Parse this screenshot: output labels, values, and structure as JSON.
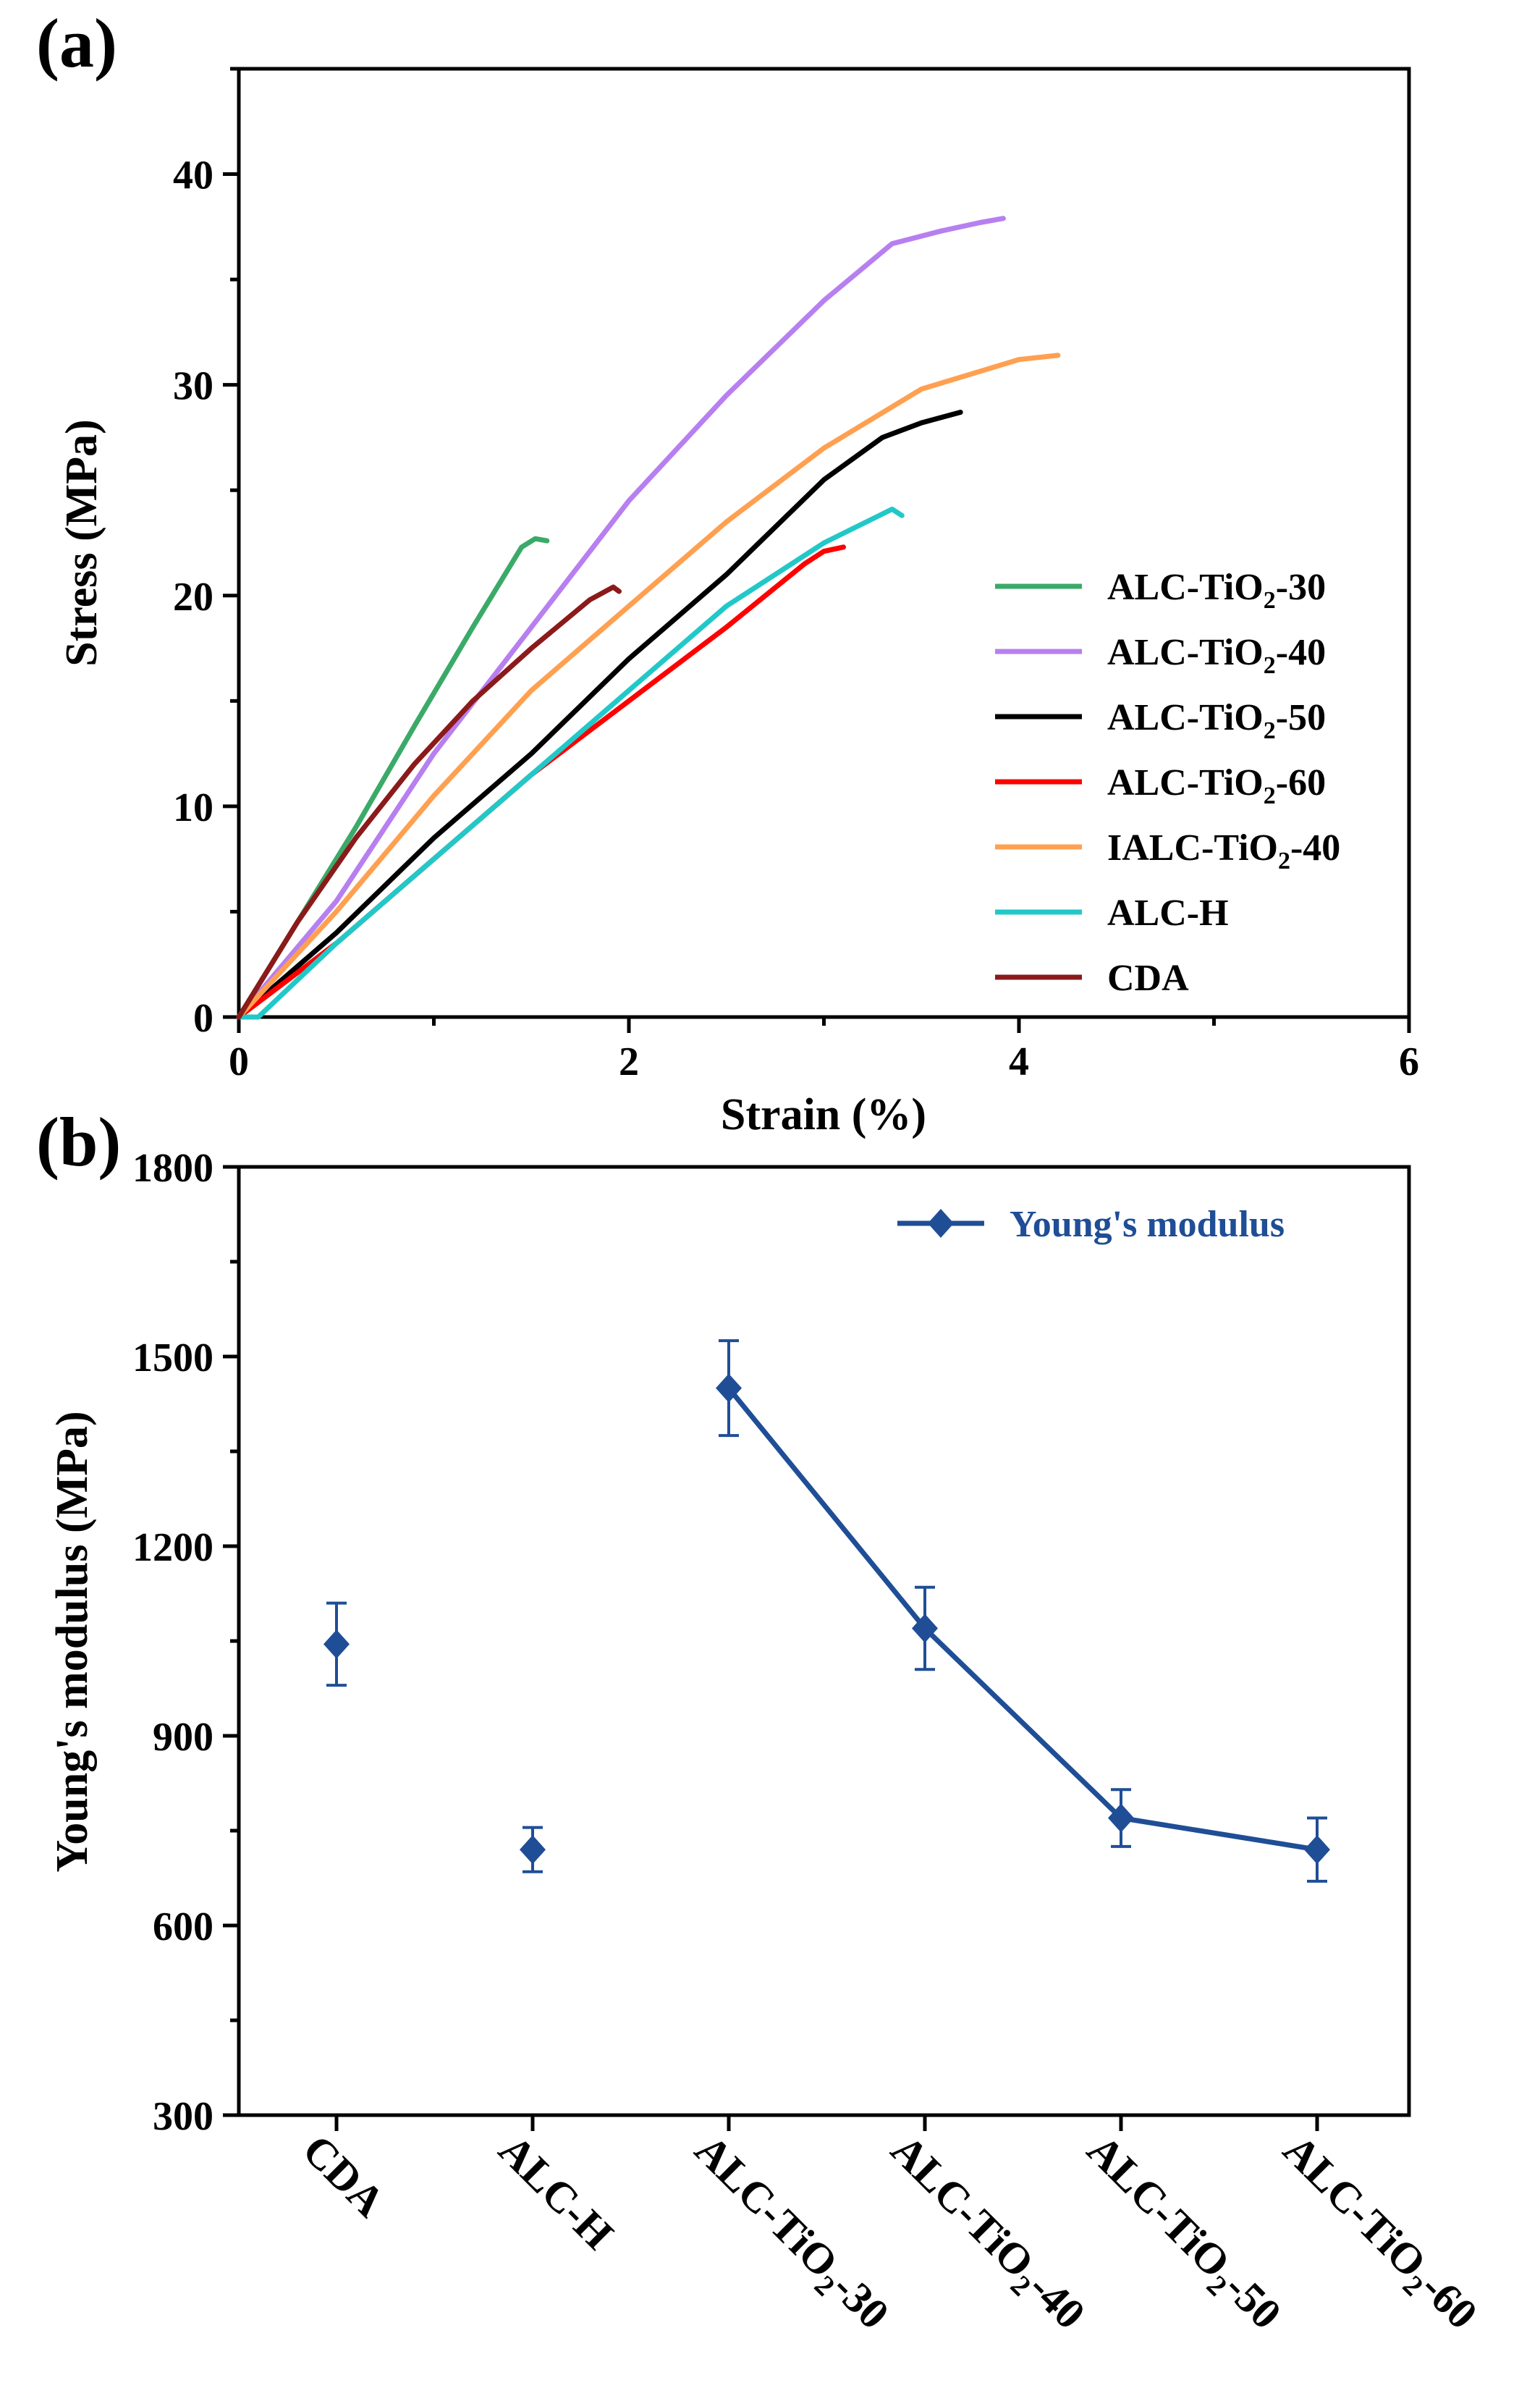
{
  "chart_data": [
    {
      "panel_label": "(a)",
      "type": "line",
      "xlabel": "Strain (%)",
      "ylabel": "Stress (MPa)",
      "xlim": [
        0,
        6
      ],
      "ylim": [
        0,
        45
      ],
      "xticks": [
        0,
        2,
        4,
        6
      ],
      "yticks": [
        0,
        10,
        20,
        30,
        40
      ],
      "series": [
        {
          "name": "ALC-TiO2-30",
          "label_main": "ALC-TiO",
          "label_sub": "2",
          "label_tail": "-30",
          "color": "#3aaa68",
          "x": [
            0,
            0.3,
            0.6,
            0.9,
            1.2,
            1.45,
            1.52,
            1.58
          ],
          "y": [
            0,
            4.5,
            9,
            13.8,
            18.5,
            22.3,
            22.7,
            22.6
          ]
        },
        {
          "name": "ALC-TiO2-40",
          "label_main": "ALC-TiO",
          "label_sub": "2",
          "label_tail": "-40",
          "color": "#b77ff0",
          "x": [
            0,
            0.5,
            1.0,
            1.5,
            2.0,
            2.5,
            3.0,
            3.35,
            3.6,
            3.8,
            3.92
          ],
          "y": [
            0,
            5.5,
            12.5,
            18.5,
            24.5,
            29.5,
            34,
            36.7,
            37.3,
            37.7,
            37.9
          ]
        },
        {
          "name": "ALC-TiO2-50",
          "label_main": "ALC-TiO",
          "label_sub": "2",
          "label_tail": "-50",
          "color": "#000000",
          "x": [
            0,
            0.5,
            1.0,
            1.5,
            2.0,
            2.5,
            3.0,
            3.3,
            3.5,
            3.7
          ],
          "y": [
            0,
            4,
            8.5,
            12.5,
            17,
            21,
            25.5,
            27.5,
            28.2,
            28.7
          ]
        },
        {
          "name": "ALC-TiO2-60",
          "label_main": "ALC-TiO",
          "label_sub": "2",
          "label_tail": "-60",
          "color": "#ff0000",
          "x": [
            0,
            0.5,
            1.0,
            1.5,
            2.0,
            2.5,
            2.9,
            3.0,
            3.1
          ],
          "y": [
            0,
            3.5,
            7.5,
            11.5,
            15,
            18.5,
            21.5,
            22.1,
            22.3
          ]
        },
        {
          "name": "IALC-TiO2-40",
          "label_main": "IALC-TiO",
          "label_sub": "2",
          "label_tail": "-40",
          "color": "#ffa050",
          "x": [
            0,
            0.5,
            1.0,
            1.5,
            2.0,
            2.5,
            3.0,
            3.5,
            4.0,
            4.2
          ],
          "y": [
            0,
            5,
            10.5,
            15.5,
            19.5,
            23.5,
            27,
            29.8,
            31.2,
            31.4
          ]
        },
        {
          "name": "ALC-H",
          "label_main": "ALC-H",
          "label_sub": "",
          "label_tail": "",
          "color": "#22c8c8",
          "x": [
            0,
            0.1,
            0.5,
            1.0,
            1.5,
            2.0,
            2.5,
            3.0,
            3.35,
            3.4
          ],
          "y": [
            0,
            0,
            3.5,
            7.5,
            11.5,
            15.5,
            19.5,
            22.5,
            24.1,
            23.8
          ]
        },
        {
          "name": "CDA",
          "label_main": "CDA",
          "label_sub": "",
          "label_tail": "",
          "color": "#8b1a1a",
          "x": [
            0,
            0.3,
            0.6,
            0.9,
            1.2,
            1.5,
            1.8,
            1.92,
            1.95
          ],
          "y": [
            0,
            4.5,
            8.5,
            12,
            15,
            17.5,
            19.8,
            20.4,
            20.2
          ]
        }
      ]
    },
    {
      "panel_label": "(b)",
      "type": "scatter",
      "xlabel": "",
      "ylabel": "Young's modulus (MPa)",
      "ylim": [
        300,
        1800
      ],
      "yticks": [
        300,
        600,
        900,
        1200,
        1500,
        1800
      ],
      "color": "#1f4e96",
      "legend": "Young's modulus",
      "categories": [
        {
          "main": "CDA",
          "sub": "",
          "tail": ""
        },
        {
          "main": "ALC-H",
          "sub": "",
          "tail": ""
        },
        {
          "main": "ALC-TiO",
          "sub": "2",
          "tail": "-30"
        },
        {
          "main": "ALC-TiO",
          "sub": "2",
          "tail": "-40"
        },
        {
          "main": "ALC-TiO",
          "sub": "2",
          "tail": "-50"
        },
        {
          "main": "ALC-TiO",
          "sub": "2",
          "tail": "-60"
        }
      ],
      "values": [
        1045,
        720,
        1450,
        1070,
        770,
        720
      ],
      "errors": [
        65,
        35,
        75,
        65,
        45,
        50
      ],
      "connected_from_index": 2
    }
  ]
}
